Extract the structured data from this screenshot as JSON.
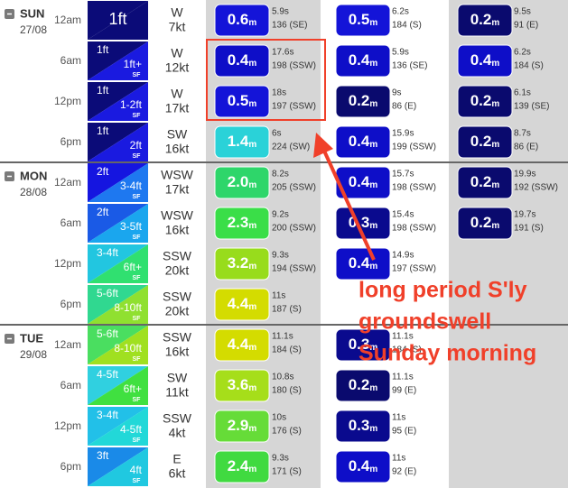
{
  "unit": "m",
  "sf": "SF",
  "days": [
    {
      "day": "SUN",
      "date": "27/08",
      "rows": [
        {
          "time": "12am",
          "surf": {
            "single": "1ft"
          },
          "surf_colors": [
            "#0b0b78",
            "#0b0b78"
          ],
          "wind_dir": "W",
          "wind_speed": "7kt",
          "swells": [
            {
              "height": "0.6",
              "period": "5.9s",
              "direction": "136 (SE)",
              "color": "#1414d8"
            },
            {
              "height": "0.5",
              "period": "6.2s",
              "direction": "184 (S)",
              "color": "#1414d8"
            },
            {
              "height": "0.2",
              "period": "9.5s",
              "direction": "91 (E)",
              "color": "#0a0a6e"
            }
          ]
        },
        {
          "time": "6am",
          "surf": {
            "min": "1ft",
            "max": "1ft+"
          },
          "surf_colors": [
            "#0b0b78",
            "#1a1ae0"
          ],
          "wind_dir": "W",
          "wind_speed": "12kt",
          "swells": [
            {
              "height": "0.4",
              "period": "17.6s",
              "direction": "198 (SSW)",
              "color": "#0e0ec8"
            },
            {
              "height": "0.4",
              "period": "5.9s",
              "direction": "136 (SE)",
              "color": "#0e0ec8"
            },
            {
              "height": "0.4",
              "period": "6.2s",
              "direction": "184 (S)",
              "color": "#0e0ec8"
            }
          ]
        },
        {
          "time": "12pm",
          "surf": {
            "min": "1ft",
            "max": "1-2ft"
          },
          "surf_colors": [
            "#0b0b78",
            "#1a1ae0"
          ],
          "wind_dir": "W",
          "wind_speed": "17kt",
          "swells": [
            {
              "height": "0.5",
              "period": "18s",
              "direction": "197 (SSW)",
              "color": "#1414d8"
            },
            {
              "height": "0.2",
              "period": "9s",
              "direction": "86 (E)",
              "color": "#0a0a6e"
            },
            {
              "height": "0.2",
              "period": "6.1s",
              "direction": "139 (SE)",
              "color": "#0a0a6e"
            }
          ]
        },
        {
          "time": "6pm",
          "surf": {
            "min": "1ft",
            "max": "2ft"
          },
          "surf_colors": [
            "#0b0b78",
            "#1a1ae0"
          ],
          "wind_dir": "SW",
          "wind_speed": "16kt",
          "swells": [
            {
              "height": "1.4",
              "period": "6s",
              "direction": "224 (SW)",
              "color": "#2ad2d8"
            },
            {
              "height": "0.4",
              "period": "15.9s",
              "direction": "199 (SSW)",
              "color": "#0e0ec8"
            },
            {
              "height": "0.2",
              "period": "8.7s",
              "direction": "86 (E)",
              "color": "#0a0a6e"
            }
          ]
        }
      ]
    },
    {
      "day": "MON",
      "date": "28/08",
      "rows": [
        {
          "time": "12am",
          "surf": {
            "min": "2ft",
            "max": "3-4ft"
          },
          "surf_colors": [
            "#1515e0",
            "#1e78f0"
          ],
          "wind_dir": "WSW",
          "wind_speed": "17kt",
          "swells": [
            {
              "height": "2.0",
              "period": "8.2s",
              "direction": "205 (SSW)",
              "color": "#2ed66a"
            },
            {
              "height": "0.4",
              "period": "15.7s",
              "direction": "198 (SSW)",
              "color": "#0e0ec8"
            },
            {
              "height": "0.2",
              "period": "19.9s",
              "direction": "192 (SSW)",
              "color": "#0a0a6e"
            }
          ]
        },
        {
          "time": "6am",
          "surf": {
            "min": "2ft",
            "max": "3-5ft"
          },
          "surf_colors": [
            "#1a5ae6",
            "#1aa6ee"
          ],
          "wind_dir": "WSW",
          "wind_speed": "16kt",
          "swells": [
            {
              "height": "2.3",
              "period": "9.2s",
              "direction": "200 (SSW)",
              "color": "#3ade48"
            },
            {
              "height": "0.3",
              "period": "15.4s",
              "direction": "198 (SSW)",
              "color": "#0a0a8e"
            },
            {
              "height": "0.2",
              "period": "19.7s",
              "direction": "191 (S)",
              "color": "#0a0a6e"
            }
          ]
        },
        {
          "time": "12pm",
          "surf": {
            "min": "3-4ft",
            "max": "6ft+"
          },
          "surf_colors": [
            "#22c6e0",
            "#30e070"
          ],
          "wind_dir": "SSW",
          "wind_speed": "20kt",
          "swells": [
            {
              "height": "3.2",
              "period": "9.3s",
              "direction": "194 (SSW)",
              "color": "#98dc1c"
            },
            {
              "height": "0.4",
              "period": "14.9s",
              "direction": "197 (SSW)",
              "color": "#0e0ec8"
            }
          ]
        },
        {
          "time": "6pm",
          "surf": {
            "min": "5-6ft",
            "max": "8-10ft"
          },
          "surf_colors": [
            "#30d890",
            "#90e030"
          ],
          "wind_dir": "SSW",
          "wind_speed": "20kt",
          "swells": [
            {
              "height": "4.4",
              "period": "11s",
              "direction": "187 (S)",
              "color": "#d4dc00"
            }
          ]
        }
      ]
    },
    {
      "day": "TUE",
      "date": "29/08",
      "rows": [
        {
          "time": "12am",
          "surf": {
            "min": "5-6ft",
            "max": "8-10ft"
          },
          "surf_colors": [
            "#4ade60",
            "#a0e020"
          ],
          "wind_dir": "SSW",
          "wind_speed": "16kt",
          "swells": [
            {
              "height": "4.4",
              "period": "11.1s",
              "direction": "184 (S)",
              "color": "#d4dc00"
            },
            {
              "height": "0.3",
              "period": "11.1s",
              "direction": "184 (S)",
              "color": "#0a0a8e"
            }
          ]
        },
        {
          "time": "6am",
          "surf": {
            "min": "4-5ft",
            "max": "6ft+"
          },
          "surf_colors": [
            "#30d0e0",
            "#40e040"
          ],
          "wind_dir": "SW",
          "wind_speed": "11kt",
          "swells": [
            {
              "height": "3.6",
              "period": "10.8s",
              "direction": "180 (S)",
              "color": "#a6de1a"
            },
            {
              "height": "0.2",
              "period": "11.1s",
              "direction": "99 (E)",
              "color": "#0a0a6e"
            }
          ]
        },
        {
          "time": "12pm",
          "surf": {
            "min": "3-4ft",
            "max": "4-5ft"
          },
          "surf_colors": [
            "#22c0e8",
            "#22d8d8"
          ],
          "wind_dir": "SSW",
          "wind_speed": "4kt",
          "swells": [
            {
              "height": "2.9",
              "period": "10s",
              "direction": "176 (S)",
              "color": "#66dc38"
            },
            {
              "height": "0.3",
              "period": "11s",
              "direction": "95 (E)",
              "color": "#0a0a8e"
            }
          ]
        },
        {
          "time": "6pm",
          "surf": {
            "min": "3ft",
            "max": "4ft"
          },
          "surf_colors": [
            "#1a8ae8",
            "#20c8e0"
          ],
          "wind_dir": "E",
          "wind_speed": "6kt",
          "swells": [
            {
              "height": "2.4",
              "period": "9.3s",
              "direction": "171 (S)",
              "color": "#40da40"
            },
            {
              "height": "0.4",
              "period": "11s",
              "direction": "92 (E)",
              "color": "#0e0ec8"
            }
          ]
        }
      ]
    }
  ],
  "annotation": {
    "lines": [
      "long period S'ly",
      "groundswell",
      "Sunday morning"
    ]
  }
}
